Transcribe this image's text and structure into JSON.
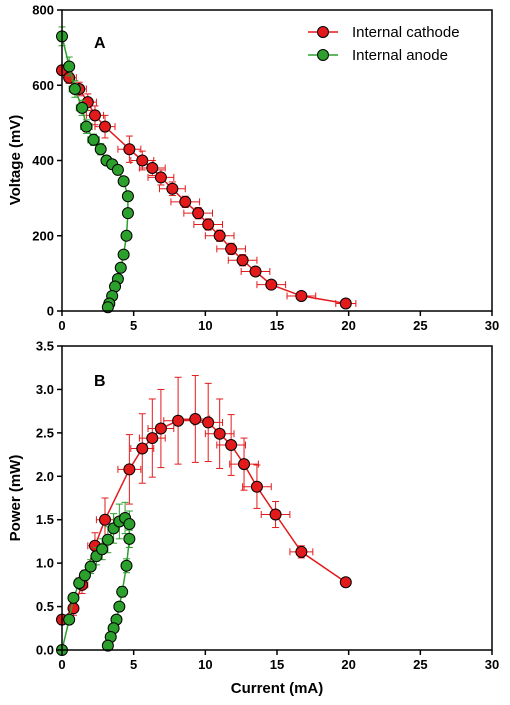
{
  "chart_data": [
    {
      "type": "line",
      "panel_label": "A",
      "xlabel": "",
      "ylabel": "Voltage (mV)",
      "xlim": [
        0,
        30
      ],
      "ylim": [
        0,
        800
      ],
      "x_ticks": [
        "0",
        "5",
        "10",
        "15",
        "20",
        "25",
        "30"
      ],
      "y_ticks": [
        "0",
        "200",
        "400",
        "600",
        "800"
      ],
      "legend_position": "top-right",
      "series": [
        {
          "name": "Internal cathode",
          "color": "#e31a1c",
          "x": [
            0,
            0.5,
            1.2,
            1.8,
            2.3,
            3.0,
            4.7,
            5.6,
            6.3,
            6.9,
            7.7,
            8.6,
            9.5,
            10.2,
            11.0,
            11.8,
            12.6,
            13.5,
            14.6,
            16.7,
            19.8
          ],
          "y": [
            640,
            620,
            590,
            555,
            520,
            490,
            430,
            400,
            380,
            355,
            325,
            290,
            260,
            230,
            200,
            165,
            135,
            105,
            70,
            40,
            20
          ],
          "xerr": [
            0.3,
            0.5,
            0.5,
            0.6,
            0.6,
            0.7,
            0.8,
            0.8,
            0.9,
            0.9,
            0.9,
            1.0,
            1.0,
            1.0,
            1.0,
            1.0,
            1.0,
            1.0,
            1.0,
            1.0,
            0.7
          ],
          "yerr": [
            12,
            15,
            18,
            22,
            25,
            30,
            35,
            25,
            20,
            20,
            18,
            15,
            15,
            15,
            15,
            15,
            15,
            10,
            10,
            8,
            0
          ]
        },
        {
          "name": "Internal anode",
          "color": "#2ca02c",
          "x": [
            0,
            0.5,
            0.9,
            1.4,
            1.7,
            2.2,
            2.7,
            3.1,
            3.5,
            3.9,
            4.3,
            4.6,
            4.6,
            4.5,
            4.3,
            4.1,
            3.9,
            3.7,
            3.5,
            3.3,
            3.2
          ],
          "y": [
            730,
            650,
            590,
            540,
            490,
            455,
            430,
            400,
            390,
            375,
            345,
            305,
            260,
            200,
            150,
            115,
            85,
            65,
            40,
            20,
            10
          ],
          "xerr": [
            0.3,
            0.3,
            0.4,
            0.4,
            0.4,
            0.4,
            0.3,
            0.3,
            0.3,
            0.3,
            0.3,
            0.2,
            0.2,
            0.2,
            0.2,
            0.2,
            0.2,
            0.2,
            0.2,
            0.2,
            0.2
          ],
          "yerr": [
            25,
            25,
            22,
            20,
            18,
            15,
            15,
            12,
            12,
            10,
            10,
            10,
            8,
            8,
            8,
            8,
            6,
            6,
            6,
            6,
            6
          ]
        }
      ]
    },
    {
      "type": "line",
      "panel_label": "B",
      "xlabel": "Current (mA)",
      "ylabel": "Power (mW)",
      "xlim": [
        0,
        30
      ],
      "ylim": [
        0,
        3.5
      ],
      "x_ticks": [
        "0",
        "5",
        "10",
        "15",
        "20",
        "25",
        "30"
      ],
      "y_ticks": [
        "0.0",
        "0.5",
        "1.0",
        "1.5",
        "2.0",
        "2.5",
        "3.0",
        "3.5"
      ],
      "series": [
        {
          "name": "Internal cathode",
          "color": "#e31a1c",
          "x": [
            0,
            0.8,
            1.4,
            2.3,
            3.0,
            4.7,
            5.6,
            6.3,
            6.9,
            8.1,
            9.3,
            10.2,
            11.0,
            11.8,
            12.7,
            13.6,
            14.9,
            16.7,
            19.8
          ],
          "y": [
            0.35,
            0.48,
            0.75,
            1.2,
            1.5,
            2.08,
            2.32,
            2.44,
            2.55,
            2.64,
            2.66,
            2.62,
            2.49,
            2.36,
            2.14,
            1.88,
            1.56,
            1.13,
            0.78
          ],
          "xerr": [
            0.2,
            0.3,
            0.4,
            0.5,
            0.6,
            0.8,
            0.8,
            0.9,
            0.9,
            1.0,
            1.0,
            1.0,
            1.0,
            1.0,
            1.0,
            1.0,
            1.0,
            0.8,
            0.0
          ],
          "yerr": [
            0.05,
            0.08,
            0.1,
            0.15,
            0.25,
            0.4,
            0.4,
            0.45,
            0.45,
            0.5,
            0.5,
            0.45,
            0.4,
            0.35,
            0.3,
            0.25,
            0.15,
            0.07,
            0.0
          ]
        },
        {
          "name": "Internal anode",
          "color": "#2ca02c",
          "x": [
            0,
            0.5,
            0.8,
            1.2,
            1.6,
            2.0,
            2.4,
            2.8,
            3.2,
            3.6,
            4.0,
            4.4,
            4.7,
            4.7,
            4.5,
            4.2,
            4.0,
            3.8,
            3.6,
            3.4,
            3.2
          ],
          "y": [
            0.0,
            0.35,
            0.6,
            0.77,
            0.86,
            0.96,
            1.08,
            1.16,
            1.27,
            1.4,
            1.48,
            1.52,
            1.45,
            1.28,
            0.97,
            0.67,
            0.5,
            0.35,
            0.25,
            0.15,
            0.05
          ],
          "xerr": [
            0.1,
            0.2,
            0.3,
            0.3,
            0.3,
            0.3,
            0.3,
            0.3,
            0.3,
            0.3,
            0.3,
            0.3,
            0.3,
            0.2,
            0.2,
            0.2,
            0.2,
            0.2,
            0.2,
            0.2,
            0.2
          ],
          "yerr": [
            0.02,
            0.04,
            0.05,
            0.06,
            0.06,
            0.08,
            0.1,
            0.12,
            0.15,
            0.17,
            0.2,
            0.18,
            0.15,
            0.1,
            0.08,
            0.06,
            0.05,
            0.04,
            0.03,
            0.03,
            0.02
          ]
        }
      ]
    }
  ]
}
